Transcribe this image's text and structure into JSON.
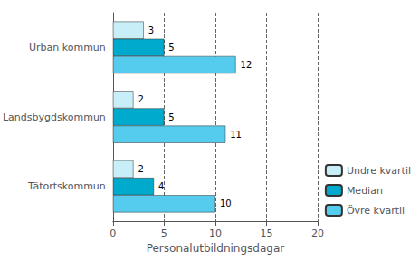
{
  "chart_data": {
    "type": "bar",
    "orientation": "horizontal",
    "categories": [
      "Urban kommun",
      "Landsbygdskommun",
      "Tätortskommun"
    ],
    "series": [
      {
        "name": "Undre kvartil",
        "color": "#c8eef8",
        "values": [
          3,
          2,
          2
        ]
      },
      {
        "name": "Median",
        "color": "#00aacc",
        "values": [
          5,
          5,
          4
        ]
      },
      {
        "name": "Övre kvartil",
        "color": "#55ccee",
        "values": [
          12,
          11,
          10
        ]
      }
    ],
    "xlabel": "Personalutbildningsdagar",
    "xlim": [
      0,
      20
    ],
    "xticks": [
      0,
      5,
      10,
      15,
      20
    ],
    "grid": true,
    "legend": "lower right",
    "data_labels": true
  }
}
